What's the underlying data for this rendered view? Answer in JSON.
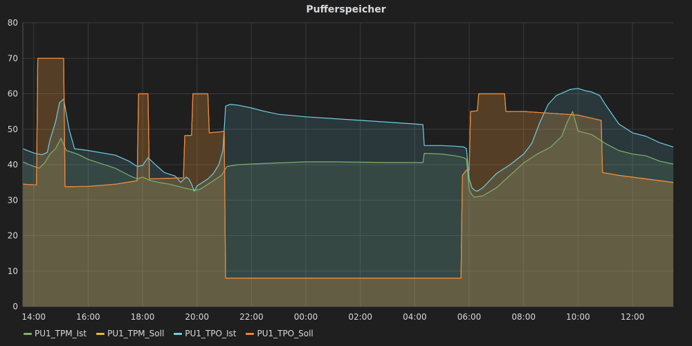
{
  "panel": {
    "title": "Pufferspeicher"
  },
  "colors": {
    "background": "#1f1f20",
    "grid": "#3a3a3c",
    "text": "#d8d9da"
  },
  "chart_data": {
    "type": "area",
    "title": "Pufferspeicher",
    "xlabel": "",
    "ylabel": "",
    "x_unit": "hours",
    "xlim": [
      13.6,
      37.5
    ],
    "ylim": [
      0,
      80
    ],
    "yticks": [
      0,
      10,
      20,
      30,
      40,
      50,
      60,
      70,
      80
    ],
    "xticks": [
      {
        "value": 14,
        "label": "14:00"
      },
      {
        "value": 16,
        "label": "16:00"
      },
      {
        "value": 18,
        "label": "18:00"
      },
      {
        "value": 20,
        "label": "20:00"
      },
      {
        "value": 22,
        "label": "22:00"
      },
      {
        "value": 24,
        "label": "00:00"
      },
      {
        "value": 26,
        "label": "02:00"
      },
      {
        "value": 28,
        "label": "04:00"
      },
      {
        "value": 30,
        "label": "06:00"
      },
      {
        "value": 32,
        "label": "08:00"
      },
      {
        "value": 34,
        "label": "10:00"
      },
      {
        "value": 36,
        "label": "12:00"
      }
    ],
    "grid": true,
    "legend_position": "bottom-left",
    "series": [
      {
        "name": "PU1_TPM_Ist",
        "color": "#7eb26d",
        "x": [
          13.6,
          13.9,
          14.2,
          14.4,
          14.6,
          14.8,
          15.0,
          15.2,
          15.6,
          16.0,
          17.0,
          17.5,
          17.8,
          18.0,
          18.3,
          18.6,
          19.0,
          19.5,
          19.9,
          20.1,
          20.3,
          20.6,
          20.9,
          21.1,
          21.5,
          22.0,
          23.0,
          24.0,
          25.0,
          26.0,
          27.0,
          28.0,
          28.3,
          28.35,
          29.0,
          29.5,
          29.8,
          29.9,
          30.0,
          30.1,
          30.2,
          30.3,
          30.5,
          31.0,
          31.5,
          32.0,
          32.5,
          33.0,
          33.4,
          33.6,
          33.8,
          34.0,
          34.5,
          35.0,
          35.5,
          36.0,
          36.5,
          37.0,
          37.5
        ],
        "y": [
          40.8,
          39.8,
          39.0,
          40.5,
          43.0,
          44.5,
          47.5,
          44.0,
          43.0,
          41.5,
          39.0,
          37.0,
          36.0,
          36.5,
          35.5,
          35.0,
          34.5,
          33.5,
          32.8,
          33.0,
          34.0,
          35.5,
          37.0,
          39.5,
          40.0,
          40.2,
          40.5,
          40.8,
          40.8,
          40.7,
          40.6,
          40.6,
          40.6,
          43.2,
          43.0,
          42.5,
          42.0,
          41.5,
          33.0,
          31.5,
          30.8,
          31.0,
          31.2,
          33.5,
          37.0,
          40.5,
          43.0,
          45.0,
          48.0,
          52.0,
          55.0,
          49.5,
          48.5,
          46.0,
          44.0,
          43.0,
          42.5,
          41.0,
          40.2
        ]
      },
      {
        "name": "PU1_TPM_Soll",
        "color": "#eab839",
        "x": [
          13.6,
          14.1,
          14.15,
          15.1,
          15.15,
          16.0,
          17.0,
          17.8,
          17.85,
          18.2,
          18.25,
          19.5,
          19.55,
          19.8,
          19.85,
          20.4,
          20.45,
          20.9,
          21.0,
          21.05,
          29.7,
          29.75,
          29.9,
          30.0,
          30.05,
          30.3,
          30.35,
          31.3,
          31.35,
          32.0,
          33.0,
          34.0,
          34.85,
          34.9,
          35.5,
          36.5,
          37.5
        ],
        "y": [
          34.5,
          34.3,
          70.0,
          70.0,
          33.8,
          33.9,
          34.5,
          35.5,
          60.0,
          60.0,
          36.0,
          36.3,
          48.2,
          48.3,
          60.0,
          60.0,
          49.0,
          49.3,
          49.5,
          8.0,
          8.0,
          37.0,
          38.5,
          38.5,
          55.0,
          55.2,
          60.0,
          60.0,
          55.0,
          55.0,
          54.5,
          54.0,
          52.5,
          37.8,
          37.0,
          36.0,
          35.0
        ]
      },
      {
        "name": "PU1_TPO_Ist",
        "color": "#6ed0e0",
        "x": [
          13.6,
          14.0,
          14.3,
          14.5,
          14.6,
          14.8,
          14.95,
          15.1,
          15.3,
          15.5,
          16.0,
          17.0,
          17.5,
          17.8,
          18.0,
          18.2,
          18.5,
          18.8,
          19.2,
          19.4,
          19.6,
          19.7,
          19.8,
          19.9,
          20.0,
          20.2,
          20.4,
          20.6,
          20.8,
          20.95,
          21.0,
          21.05,
          21.2,
          21.5,
          22.0,
          22.5,
          23.0,
          24.0,
          25.0,
          26.0,
          27.0,
          28.0,
          28.3,
          28.35,
          29.0,
          29.5,
          29.8,
          29.9,
          30.0,
          30.1,
          30.2,
          30.3,
          30.5,
          31.0,
          31.5,
          32.0,
          32.3,
          32.6,
          32.9,
          33.2,
          33.5,
          33.7,
          34.0,
          34.3,
          34.5,
          34.8,
          35.0,
          35.5,
          36.0,
          36.5,
          37.0,
          37.5
        ],
        "y": [
          44.5,
          43.3,
          42.8,
          43.5,
          47.0,
          52.0,
          57.5,
          58.5,
          50.0,
          44.5,
          44.0,
          42.7,
          41.0,
          39.5,
          39.8,
          42.0,
          39.8,
          37.8,
          36.8,
          35.0,
          36.5,
          36.0,
          34.5,
          32.5,
          34.0,
          35.0,
          36.0,
          37.5,
          40.0,
          44.0,
          50.0,
          56.5,
          57.0,
          56.8,
          56.0,
          55.0,
          54.2,
          53.5,
          53.0,
          52.5,
          52.0,
          51.5,
          51.3,
          45.4,
          45.4,
          45.2,
          45.0,
          44.5,
          36.0,
          33.5,
          32.8,
          32.5,
          33.5,
          37.5,
          40.0,
          43.0,
          46.0,
          52.0,
          57.0,
          59.5,
          60.5,
          61.2,
          61.5,
          60.8,
          60.5,
          59.5,
          57.0,
          51.5,
          49.0,
          48.0,
          46.2,
          45.0
        ]
      },
      {
        "name": "PU1_TPO_Soll",
        "color": "#ef843c",
        "x": [
          13.6,
          14.1,
          14.15,
          15.1,
          15.15,
          16.0,
          17.0,
          17.8,
          17.85,
          18.2,
          18.25,
          19.5,
          19.55,
          19.8,
          19.85,
          20.4,
          20.45,
          20.9,
          21.0,
          21.05,
          29.7,
          29.75,
          29.9,
          30.0,
          30.05,
          30.3,
          30.35,
          31.3,
          31.35,
          32.0,
          33.0,
          34.0,
          34.85,
          34.9,
          35.5,
          36.5,
          37.5
        ],
        "y": [
          34.5,
          34.3,
          70.0,
          70.0,
          33.8,
          33.9,
          34.5,
          35.5,
          60.0,
          60.0,
          36.0,
          36.3,
          48.2,
          48.3,
          60.0,
          60.0,
          49.0,
          49.3,
          49.5,
          8.0,
          8.0,
          37.0,
          38.5,
          38.5,
          55.0,
          55.2,
          60.0,
          60.0,
          55.0,
          55.0,
          54.5,
          54.0,
          52.5,
          37.8,
          37.0,
          36.0,
          35.0
        ]
      }
    ]
  }
}
